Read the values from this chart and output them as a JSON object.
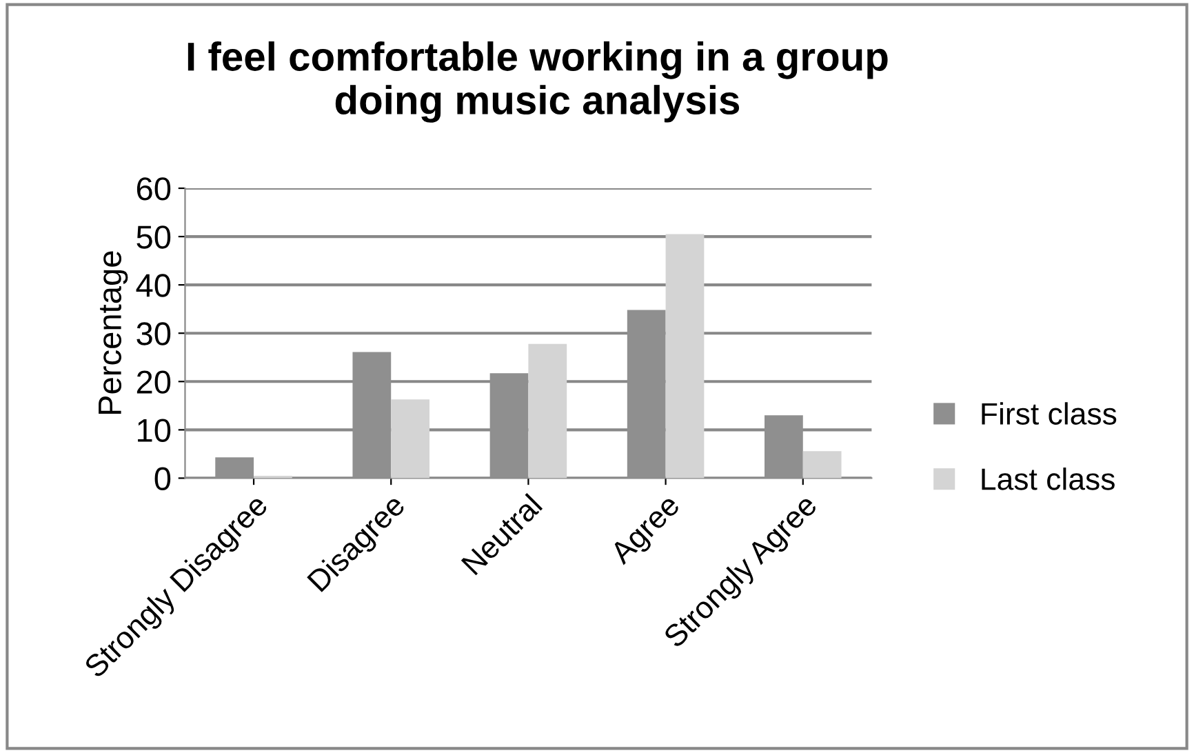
{
  "chart_data": {
    "type": "bar",
    "title": "I feel comfortable working in a group\ndoing music analysis",
    "ylabel": "Percentage",
    "categories": [
      "Strongly Disagree",
      "Disagree",
      "Neutral",
      "Agree",
      "Strongly Agree"
    ],
    "series": [
      {
        "name": "First class",
        "color": "#8f8f8f",
        "values": [
          4.3,
          26.1,
          21.7,
          34.8,
          13
        ]
      },
      {
        "name": "Last class",
        "color": "#d4d4d4",
        "values": [
          0.5,
          16.3,
          27.8,
          50.5,
          5.6
        ]
      }
    ],
    "ylim": [
      0,
      60
    ],
    "yticks": [
      0,
      10,
      20,
      30,
      40,
      50,
      60
    ],
    "grid": "y",
    "legend": "right"
  }
}
